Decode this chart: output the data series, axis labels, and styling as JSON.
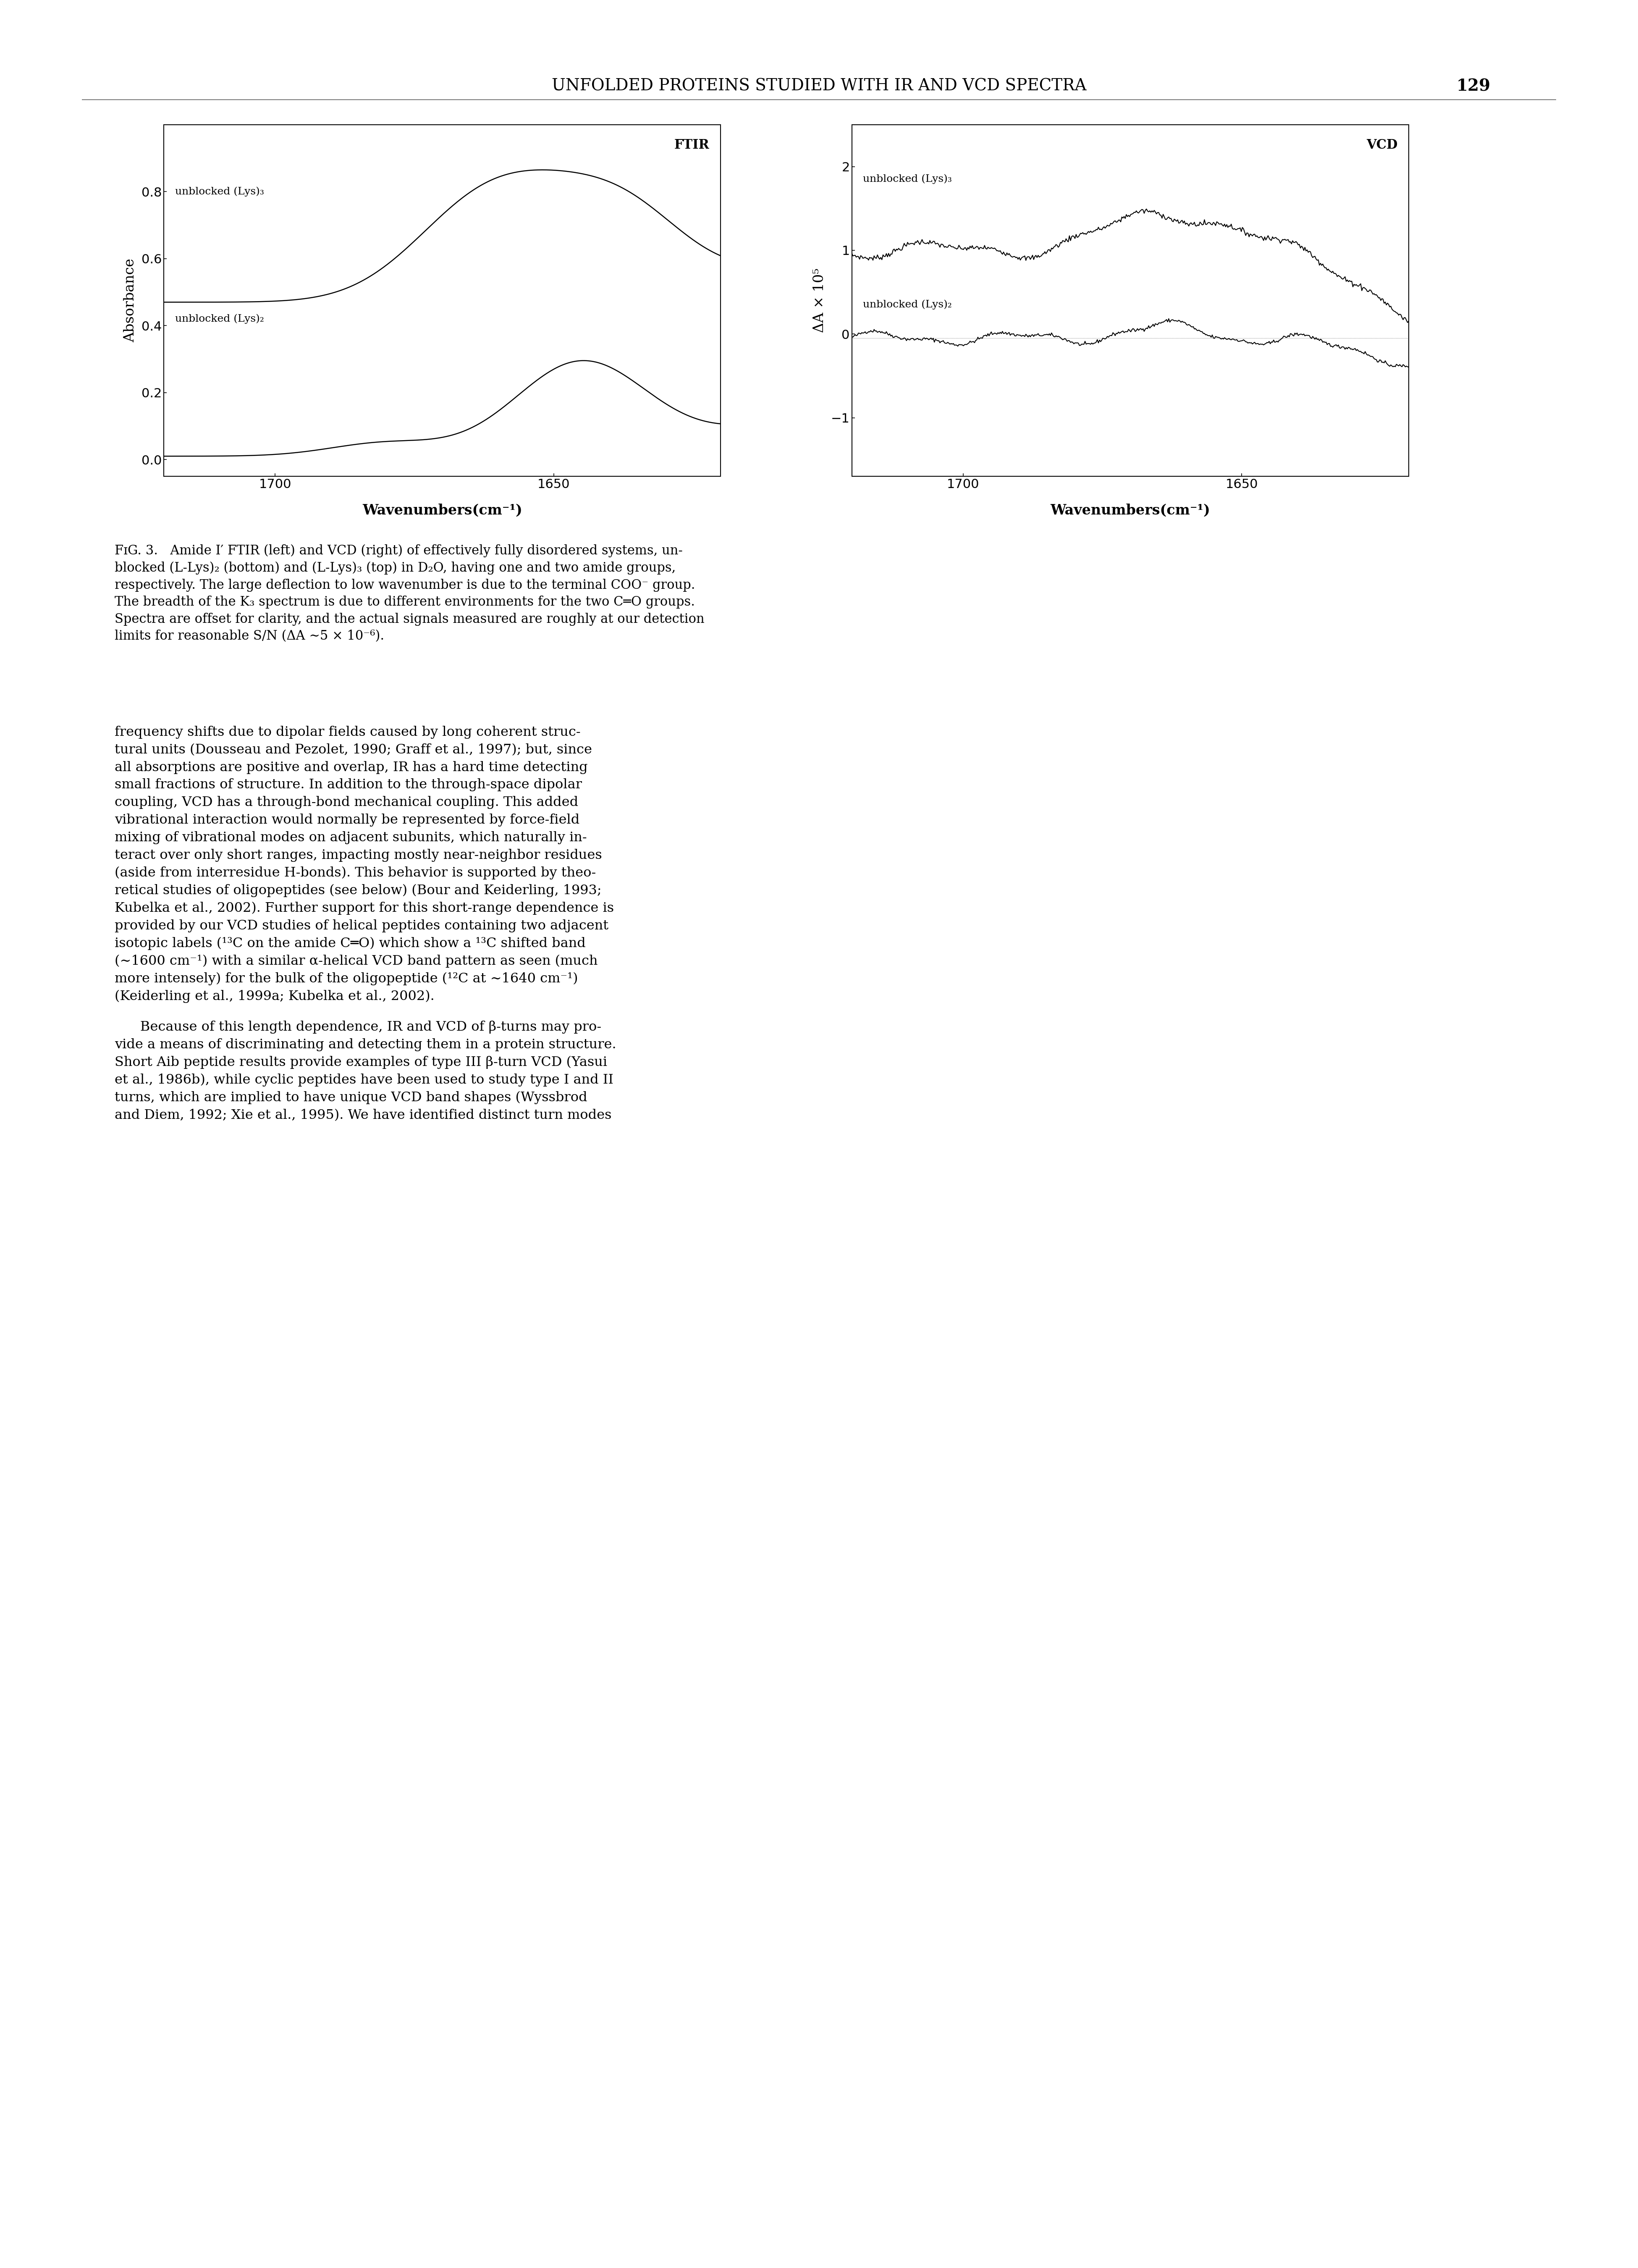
{
  "page_header": "UNFOLDED PROTEINS STUDIED WITH IR AND VCD SPECTRA",
  "page_number": "129",
  "ftir_title": "FTIR",
  "vcd_title": "VCD",
  "ftir_ylabel": "Absorbance",
  "ftir_xlabel": "Wavenumbers(cm⁻¹)",
  "vcd_ylabel": "ΔA × 10⁵",
  "vcd_xlabel": "Wavenumbers(cm⁻¹)",
  "ftir_xlim": [
    1720,
    1620
  ],
  "ftir_ylim": [
    -0.05,
    1.0
  ],
  "ftir_yticks": [
    0.0,
    0.2,
    0.4,
    0.6,
    0.8
  ],
  "ftir_xticks": [
    1700,
    1650
  ],
  "vcd_xlim": [
    1720,
    1620
  ],
  "vcd_ylim": [
    -1.7,
    2.5
  ],
  "vcd_yticks": [
    -1,
    0,
    1,
    2
  ],
  "vcd_xticks": [
    1700,
    1650
  ],
  "label_lys3_ftir": "unblocked (Lys)₃",
  "label_lys2_ftir": "unblocked (Lys)₂",
  "label_lys3_vcd": "unblocked (Lys)₃",
  "label_lys2_vcd": "unblocked (Lys)₂",
  "caption": "FIG. 3.   Amide I′ FTIR (left) and VCD (right) of effectively fully disordered systems, unblocked (L-Lys)₂ (bottom) and (L-Lys)₃ (top) in D₂O, having one and two amide groups, respectively. The large deflection to low wavenumber is due to the terminal COO⁻ group. The breadth of the K₃ spectrum is due to different environments for the two C═O groups. Spectra are offset for clarity, and the actual signals measured are roughly at our detection limits for reasonable S/N (ΔA ∼5 × 10⁻⁶).",
  "body_text_1": "frequency shifts due to dipolar fields caused by long coherent structural units (Dousseau and Pezolet, 1990; Graff et al., 1997); but, since all absorptions are positive and overlap, IR has a hard time detecting small fractions of structure. In addition to the through-space dipolar coupling, VCD has a through-bond mechanical coupling. This added vibrational interaction would normally be represented by force-field mixing of vibrational modes on adjacent subunits, which naturally interact over only short ranges, impacting mostly near-neighbor residues (aside from interresidue H-bonds). This behavior is supported by theoretical studies of oligopeptides (see below) (Bour and Keiderling, 1993; Kubelka et al., 2002). Further support for this short-range dependence is provided by our VCD studies of helical peptides containing two adjacent isotopic labels (¹³C on the amide C═O) which show a ¹³C shifted band (∼1600 cm⁻¹) with a similar α-helical VCD band pattern as seen (much more intensely) for the bulk of the oligopeptide (¹²C at ∼1640 cm⁻¹) (Keiderling et al., 1999a; Kubelka et al., 2002).",
  "body_text_2": "Because of this length dependence, IR and VCD of β-turns may provide a means of discriminating and detecting them in a protein structure. Short Aib peptide results provide examples of type III β-turn VCD (Yasui et al., 1986b), while cyclic peptides have been used to study type I and II turns, which are implied to have unique VCD band shapes (Wyssbrod and Diem, 1992; Xie et al., 1995). We have identified distinct turn modes"
}
